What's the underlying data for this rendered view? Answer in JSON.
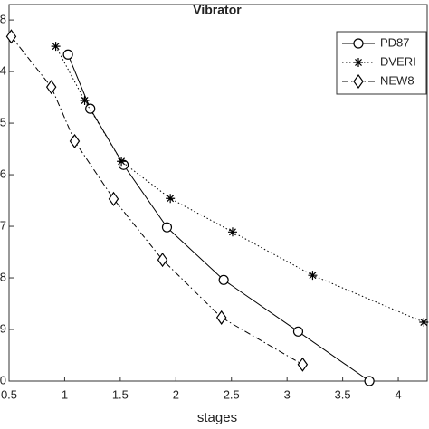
{
  "chart_data": {
    "type": "line",
    "title": "Vibrator",
    "x_label": "stages",
    "xlim": [
      0.5,
      4.26
    ],
    "xticks": [
      0.5,
      1,
      1.5,
      2,
      2.5,
      3,
      3.5,
      4
    ],
    "ylim": [
      0,
      7.3
    ],
    "yticks": [
      {
        "value": 0,
        "label": "0"
      },
      {
        "value": 1,
        "label": "9"
      },
      {
        "value": 2,
        "label": "8"
      },
      {
        "value": 3,
        "label": "7"
      },
      {
        "value": 4,
        "label": "6"
      },
      {
        "value": 5,
        "label": "5"
      },
      {
        "value": 6,
        "label": "4"
      },
      {
        "value": 7,
        "label": "8"
      }
    ],
    "legend": "upper right",
    "series": [
      {
        "name": "PD87",
        "color": "#000000",
        "linestyle": "solid",
        "marker": "circle",
        "x": [
          1.03,
          1.23,
          1.53,
          1.92,
          2.43,
          3.1,
          3.74
        ],
        "values": [
          6.33,
          5.28,
          4.19,
          2.98,
          1.96,
          0.96,
          0
        ]
      },
      {
        "name": "DVERI",
        "color": "#000000",
        "linestyle": "dotted",
        "marker": "star",
        "x": [
          0.92,
          1.18,
          1.51,
          1.95,
          2.51,
          3.23,
          4.23
        ],
        "values": [
          6.49,
          5.44,
          4.26,
          3.54,
          2.89,
          2.05,
          1.14
        ]
      },
      {
        "name": "NEW8",
        "color": "#000000",
        "linestyle": "dashdot",
        "marker": "diamond",
        "x": [
          0.52,
          0.88,
          1.09,
          1.44,
          1.88,
          2.41,
          3.14
        ],
        "values": [
          6.68,
          5.7,
          4.65,
          3.53,
          2.35,
          1.23,
          0.32
        ]
      }
    ]
  }
}
